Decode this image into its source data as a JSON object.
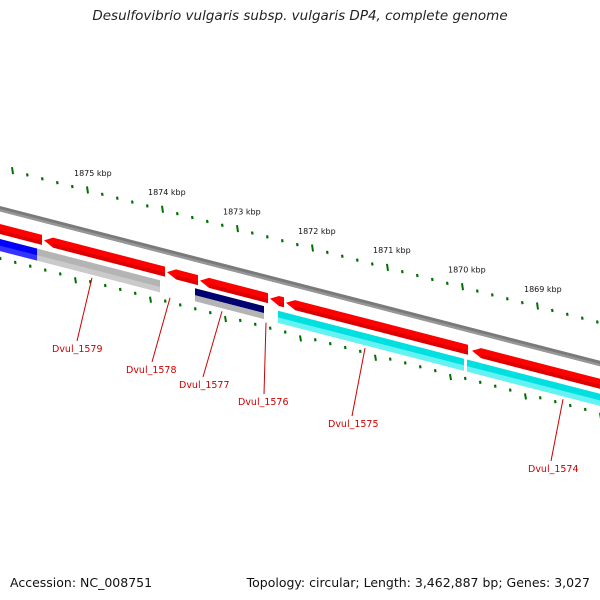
{
  "title": "Desulfovibrio vulgaris subsp. vulgaris DP4, complete genome",
  "footer": {
    "accession": "Accession: NC_008751",
    "topology": "Topology: circular; Length: 3,462,887 bp; Genes: 3,027"
  },
  "colors": {
    "forward_gene": "#ff0000",
    "reverse_gray": "#b4b4b4",
    "reverse_cyan": "#00e0e0",
    "reverse_blue": "#0000ff",
    "reverse_navy": "#00006e",
    "backbone": "#7a7a7a",
    "ticks": "#007000",
    "label": "#cc0000"
  },
  "ticks": [
    "1875 kbp",
    "1874 kbp",
    "1873 kbp",
    "1872 kbp",
    "1871 kbp",
    "1870 kbp",
    "1869 kbp"
  ],
  "genes": [
    "Dvul_1579",
    "Dvul_1578",
    "Dvul_1577",
    "Dvul_1576",
    "Dvul_1575",
    "Dvul_1574"
  ]
}
